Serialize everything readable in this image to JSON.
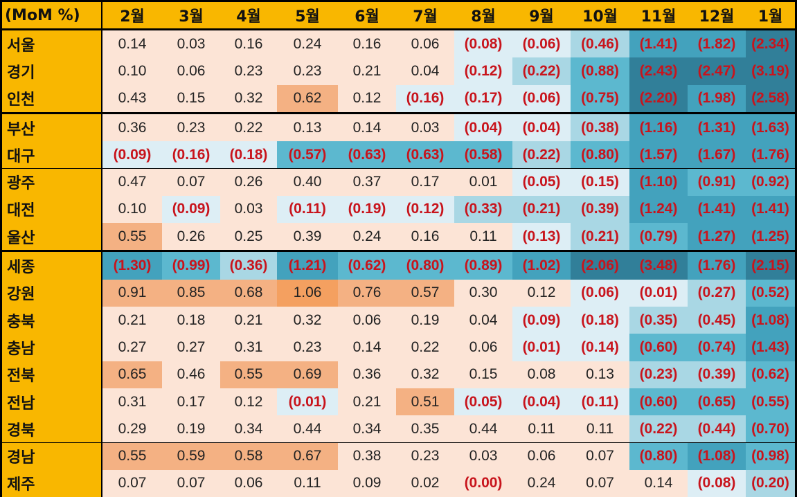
{
  "corner_label": "(MoM %)",
  "months": [
    "2월",
    "3월",
    "4월",
    "5월",
    "6월",
    "7월",
    "8월",
    "9월",
    "10월",
    "11월",
    "12월",
    "1월"
  ],
  "regions": [
    "서울",
    "경기",
    "인천",
    "부산",
    "대구",
    "광주",
    "대전",
    "울산",
    "세종",
    "강원",
    "충북",
    "충남",
    "전북",
    "전남",
    "경북",
    "경남",
    "제주"
  ],
  "group_breaks_after": [
    2,
    7
  ],
  "cells": [
    [
      "0.14",
      "0.03",
      "0.16",
      "0.24",
      "0.16",
      "0.06",
      "(0.08)",
      "(0.06)",
      "(0.46)",
      "(1.41)",
      "(1.82)",
      "(2.34)"
    ],
    [
      "0.10",
      "0.06",
      "0.23",
      "0.23",
      "0.21",
      "0.04",
      "(0.12)",
      "(0.22)",
      "(0.88)",
      "(2.43)",
      "(2.47)",
      "(3.19)"
    ],
    [
      "0.43",
      "0.15",
      "0.32",
      "0.62",
      "0.12",
      "(0.16)",
      "(0.17)",
      "(0.06)",
      "(0.75)",
      "(2.20)",
      "(1.98)",
      "(2.58)"
    ],
    [
      "0.36",
      "0.23",
      "0.22",
      "0.13",
      "0.14",
      "0.03",
      "(0.04)",
      "(0.04)",
      "(0.38)",
      "(1.16)",
      "(1.31)",
      "(1.63)"
    ],
    [
      "(0.09)",
      "(0.16)",
      "(0.18)",
      "(0.57)",
      "(0.63)",
      "(0.63)",
      "(0.58)",
      "(0.22)",
      "(0.80)",
      "(1.57)",
      "(1.67)",
      "(1.76)"
    ],
    [
      "0.47",
      "0.07",
      "0.26",
      "0.40",
      "0.37",
      "0.17",
      "0.01",
      "(0.05)",
      "(0.15)",
      "(1.10)",
      "(0.91)",
      "(0.92)"
    ],
    [
      "0.10",
      "(0.09)",
      "0.03",
      "(0.11)",
      "(0.19)",
      "(0.12)",
      "(0.33)",
      "(0.21)",
      "(0.39)",
      "(1.24)",
      "(1.41)",
      "(1.41)"
    ],
    [
      "0.55",
      "0.26",
      "0.25",
      "0.39",
      "0.24",
      "0.16",
      "0.11",
      "(0.13)",
      "(0.21)",
      "(0.79)",
      "(1.27)",
      "(1.25)"
    ],
    [
      "(1.30)",
      "(0.99)",
      "(0.36)",
      "(1.21)",
      "(0.62)",
      "(0.80)",
      "(0.89)",
      "(1.02)",
      "(2.06)",
      "(3.48)",
      "(1.76)",
      "(2.15)"
    ],
    [
      "0.91",
      "0.85",
      "0.68",
      "1.06",
      "0.76",
      "0.57",
      "0.30",
      "0.12",
      "(0.06)",
      "(0.01)",
      "(0.27)",
      "(0.52)"
    ],
    [
      "0.21",
      "0.18",
      "0.21",
      "0.32",
      "0.06",
      "0.19",
      "0.04",
      "(0.09)",
      "(0.18)",
      "(0.35)",
      "(0.45)",
      "(1.08)"
    ],
    [
      "0.27",
      "0.27",
      "0.31",
      "0.23",
      "0.14",
      "0.22",
      "0.06",
      "(0.01)",
      "(0.14)",
      "(0.60)",
      "(0.74)",
      "(1.43)"
    ],
    [
      "0.65",
      "0.46",
      "0.55",
      "0.69",
      "0.36",
      "0.32",
      "0.15",
      "0.08",
      "0.13",
      "(0.23)",
      "(0.39)",
      "(0.62)"
    ],
    [
      "0.31",
      "0.17",
      "0.12",
      "(0.01)",
      "0.21",
      "0.51",
      "(0.05)",
      "(0.04)",
      "(0.11)",
      "(0.60)",
      "(0.65)",
      "(0.55)"
    ],
    [
      "0.29",
      "0.19",
      "0.34",
      "0.44",
      "0.34",
      "0.35",
      "0.44",
      "0.11",
      "0.11",
      "(0.22)",
      "(0.44)",
      "(0.70)"
    ],
    [
      "0.55",
      "0.59",
      "0.58",
      "0.67",
      "0.38",
      "0.23",
      "0.03",
      "0.06",
      "0.07",
      "(0.80)",
      "(1.08)",
      "(0.98)"
    ],
    [
      "0.07",
      "0.07",
      "0.06",
      "0.11",
      "0.09",
      "0.02",
      "(0.00)",
      "0.24",
      "0.07",
      "0.14",
      "(0.08)",
      "(0.20)"
    ]
  ],
  "colors": {
    "header_bg": "#f9b700",
    "negative_text": "#c8141c",
    "positive_text": "#222222",
    "scale_positive": [
      "#fce4d6",
      "#f8cbad",
      "#f4b183",
      "#f4a060"
    ],
    "scale_negative": [
      "#ddeef5",
      "#a9d7e4",
      "#5cb8cf",
      "#43a2bd",
      "#317f99"
    ]
  },
  "chart_data": {
    "type": "heatmap",
    "title": "(MoM %)",
    "x": [
      "2월",
      "3월",
      "4월",
      "5월",
      "6월",
      "7월",
      "8월",
      "9월",
      "10월",
      "11월",
      "12월",
      "1월"
    ],
    "y": [
      "서울",
      "경기",
      "인천",
      "부산",
      "대구",
      "광주",
      "대전",
      "울산",
      "세종",
      "강원",
      "충북",
      "충남",
      "전북",
      "전남",
      "경북",
      "경남",
      "제주"
    ],
    "values": [
      [
        0.14,
        0.03,
        0.16,
        0.24,
        0.16,
        0.06,
        -0.08,
        -0.06,
        -0.46,
        -1.41,
        -1.82,
        -2.34
      ],
      [
        0.1,
        0.06,
        0.23,
        0.23,
        0.21,
        0.04,
        -0.12,
        -0.22,
        -0.88,
        -2.43,
        -2.47,
        -3.19
      ],
      [
        0.43,
        0.15,
        0.32,
        0.62,
        0.12,
        -0.16,
        -0.17,
        -0.06,
        -0.75,
        -2.2,
        -1.98,
        -2.58
      ],
      [
        0.36,
        0.23,
        0.22,
        0.13,
        0.14,
        0.03,
        -0.04,
        -0.04,
        -0.38,
        -1.16,
        -1.31,
        -1.63
      ],
      [
        -0.09,
        -0.16,
        -0.18,
        -0.57,
        -0.63,
        -0.63,
        -0.58,
        -0.22,
        -0.8,
        -1.57,
        -1.67,
        -1.76
      ],
      [
        0.47,
        0.07,
        0.26,
        0.4,
        0.37,
        0.17,
        0.01,
        -0.05,
        -0.15,
        -1.1,
        -0.91,
        -0.92
      ],
      [
        0.1,
        -0.09,
        0.03,
        -0.11,
        -0.19,
        -0.12,
        -0.33,
        -0.21,
        -0.39,
        -1.24,
        -1.41,
        -1.41
      ],
      [
        0.55,
        0.26,
        0.25,
        0.39,
        0.24,
        0.16,
        0.11,
        -0.13,
        -0.21,
        -0.79,
        -1.27,
        -1.25
      ],
      [
        -1.3,
        -0.99,
        -0.36,
        -1.21,
        -0.62,
        -0.8,
        -0.89,
        -1.02,
        -2.06,
        -3.48,
        -1.76,
        -2.15
      ],
      [
        0.91,
        0.85,
        0.68,
        1.06,
        0.76,
        0.57,
        0.3,
        0.12,
        -0.06,
        -0.01,
        -0.27,
        -0.52
      ],
      [
        0.21,
        0.18,
        0.21,
        0.32,
        0.06,
        0.19,
        0.04,
        -0.09,
        -0.18,
        -0.35,
        -0.45,
        -1.08
      ],
      [
        0.27,
        0.27,
        0.31,
        0.23,
        0.14,
        0.22,
        0.06,
        -0.01,
        -0.14,
        -0.6,
        -0.74,
        -1.43
      ],
      [
        0.65,
        0.46,
        0.55,
        0.69,
        0.36,
        0.32,
        0.15,
        0.08,
        0.13,
        -0.23,
        -0.39,
        -0.62
      ],
      [
        0.31,
        0.17,
        0.12,
        -0.01,
        0.21,
        0.51,
        -0.05,
        -0.04,
        -0.11,
        -0.6,
        -0.65,
        -0.55
      ],
      [
        0.29,
        0.19,
        0.34,
        0.44,
        0.34,
        0.35,
        0.44,
        0.11,
        0.11,
        -0.22,
        -0.44,
        -0.7
      ],
      [
        0.55,
        0.59,
        0.58,
        0.67,
        0.38,
        0.23,
        0.03,
        0.06,
        0.07,
        -0.8,
        -1.08,
        -0.98
      ],
      [
        0.07,
        0.07,
        0.06,
        0.11,
        0.09,
        0.02,
        -0.0,
        0.24,
        0.07,
        0.14,
        -0.08,
        -0.2
      ]
    ],
    "negative_format": "parentheses"
  }
}
